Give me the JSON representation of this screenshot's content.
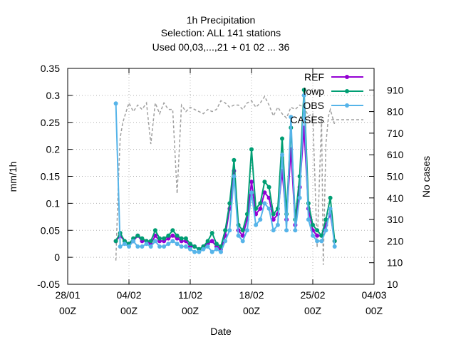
{
  "chart_data": {
    "type": "line",
    "title": [
      "1h Precipitation",
      "Selection: ALL     141 stations",
      "Used  00,03,...,21  + 01 02 ... 36"
    ],
    "xlabel": "Date",
    "ylabel": "mm/1h",
    "y2label": "No cases",
    "x_ticks": [
      {
        "top": "28/01",
        "bottom": "00Z"
      },
      {
        "top": "04/02",
        "bottom": "00Z"
      },
      {
        "top": "11/02",
        "bottom": "00Z"
      },
      {
        "top": "18/02",
        "bottom": "00Z"
      },
      {
        "top": "25/02",
        "bottom": "00Z"
      },
      {
        "top": "04/03",
        "bottom": "00Z"
      }
    ],
    "xlim_days": [
      0,
      35
    ],
    "ylim": [
      -0.05,
      0.35
    ],
    "y_ticks": [
      "-0.05",
      "0",
      "0.05",
      "0.1",
      "0.15",
      "0.2",
      "0.25",
      "0.3",
      "0.35"
    ],
    "y2lim": [
      10,
      1010
    ],
    "y2_ticks": [
      "10",
      "110",
      "210",
      "310",
      "410",
      "510",
      "610",
      "710",
      "810",
      "910"
    ],
    "grid": true,
    "legend_position": "top-right",
    "colors": {
      "REF": "#9400d3",
      "lowp": "#009e73",
      "OBS": "#56b4e9",
      "CASES": "#a0a0a0"
    },
    "series": [
      {
        "name": "REF",
        "axis": "y",
        "style": "line-points",
        "x": [
          5.5,
          6,
          6.5,
          7,
          7.5,
          8,
          8.5,
          9,
          9.5,
          10,
          10.5,
          11,
          11.5,
          12,
          12.5,
          13,
          13.5,
          14,
          14.5,
          15,
          15.5,
          16,
          16.5,
          17,
          17.5,
          18,
          18.5,
          19,
          19.5,
          20,
          20.5,
          21,
          21.5,
          22,
          22.5,
          23,
          23.5,
          24,
          24.5,
          25,
          25.5,
          26,
          26.5,
          27,
          27.5,
          28,
          28.5,
          29,
          29.5,
          30,
          30.5
        ],
        "values": [
          0.03,
          0.04,
          0.03,
          0.025,
          0.03,
          0.04,
          0.03,
          0.03,
          0.025,
          0.04,
          0.03,
          0.03,
          0.035,
          0.04,
          0.035,
          0.03,
          0.03,
          0.02,
          0.02,
          0.015,
          0.02,
          0.025,
          0.03,
          0.02,
          0.015,
          0.04,
          0.09,
          0.16,
          0.05,
          0.04,
          0.07,
          0.14,
          0.08,
          0.09,
          0.12,
          0.11,
          0.07,
          0.08,
          0.16,
          0.07,
          0.2,
          0.06,
          0.13,
          0.24,
          0.09,
          0.05,
          0.04,
          0.04,
          0.06,
          0.08,
          0.03
        ]
      },
      {
        "name": "lowp",
        "axis": "y",
        "style": "line-points",
        "x": [
          5.5,
          6,
          6.5,
          7,
          7.5,
          8,
          8.5,
          9,
          9.5,
          10,
          10.5,
          11,
          11.5,
          12,
          12.5,
          13,
          13.5,
          14,
          14.5,
          15,
          15.5,
          16,
          16.5,
          17,
          17.5,
          18,
          18.5,
          19,
          19.5,
          20,
          20.5,
          21,
          21.5,
          22,
          22.5,
          23,
          23.5,
          24,
          24.5,
          25,
          25.5,
          26,
          26.5,
          27,
          27.5,
          28,
          28.5,
          29,
          29.5,
          30,
          30.5
        ],
        "values": [
          0.03,
          0.045,
          0.03,
          0.025,
          0.035,
          0.04,
          0.035,
          0.03,
          0.03,
          0.05,
          0.035,
          0.035,
          0.04,
          0.05,
          0.04,
          0.035,
          0.035,
          0.025,
          0.02,
          0.015,
          0.02,
          0.03,
          0.045,
          0.025,
          0.02,
          0.05,
          0.1,
          0.18,
          0.06,
          0.05,
          0.08,
          0.2,
          0.09,
          0.1,
          0.14,
          0.13,
          0.08,
          0.09,
          0.22,
          0.08,
          0.24,
          0.07,
          0.15,
          0.31,
          0.1,
          0.06,
          0.05,
          0.04,
          0.07,
          0.11,
          0.03
        ]
      },
      {
        "name": "OBS",
        "axis": "y",
        "style": "line-points",
        "x": [
          5.5,
          6,
          6.5,
          7,
          7.5,
          8,
          8.5,
          9,
          9.5,
          10,
          10.5,
          11,
          11.5,
          12,
          12.5,
          13,
          13.5,
          14,
          14.5,
          15,
          15.5,
          16,
          16.5,
          17,
          17.5,
          18,
          18.5,
          19,
          19.5,
          20,
          20.5,
          21,
          21.5,
          22,
          22.5,
          23,
          23.5,
          24,
          24.5,
          25,
          25.5,
          26,
          26.5,
          27,
          27.5,
          28,
          28.5,
          29,
          29.5,
          30,
          30.5
        ],
        "values": [
          0.285,
          0.02,
          0.025,
          0.02,
          0.03,
          0.02,
          0.02,
          0.025,
          0.02,
          0.03,
          0.02,
          0.02,
          0.025,
          0.03,
          0.025,
          0.02,
          0.02,
          0.015,
          0.01,
          0.01,
          0.015,
          0.02,
          0.01,
          0.015,
          0.01,
          0.03,
          0.05,
          0.15,
          0.04,
          0.03,
          0.05,
          0.12,
          0.06,
          0.07,
          0.1,
          0.09,
          0.05,
          0.06,
          0.19,
          0.05,
          0.26,
          0.05,
          0.11,
          0.3,
          0.07,
          0.04,
          0.03,
          0.03,
          0.05,
          0.09,
          0.02
        ]
      },
      {
        "name": "CASES",
        "axis": "y2",
        "style": "dashed",
        "x": [
          5.5,
          5.8,
          6,
          6.3,
          6.6,
          7,
          7.5,
          8,
          8.5,
          9,
          9.5,
          10,
          10.5,
          11,
          11.5,
          12,
          12.5,
          13,
          13.5,
          14,
          14.5,
          15,
          15.5,
          16,
          16.5,
          17,
          17.5,
          18,
          18.5,
          19,
          19.5,
          20,
          20.5,
          21,
          21.5,
          22,
          22.5,
          23,
          23.5,
          24,
          24.5,
          25,
          25.5,
          26,
          26.5,
          27,
          27.5,
          28,
          28.5,
          29,
          29.2,
          29.5,
          29.8,
          30,
          30.5
        ],
        "values": [
          120,
          500,
          690,
          760,
          800,
          850,
          810,
          840,
          820,
          850,
          660,
          850,
          800,
          850,
          820,
          820,
          430,
          840,
          810,
          830,
          820,
          810,
          800,
          820,
          810,
          820,
          860,
          850,
          830,
          840,
          840,
          820,
          850,
          860,
          830,
          850,
          880,
          840,
          790,
          830,
          800,
          780,
          830,
          820,
          840,
          830,
          790,
          800,
          180,
          780,
          100,
          660,
          790,
          820,
          750
        ]
      }
    ]
  }
}
